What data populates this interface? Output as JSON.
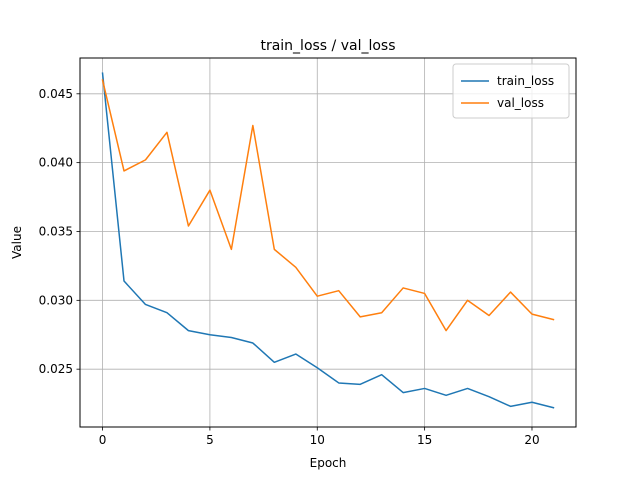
{
  "chart_data": {
    "type": "line",
    "title": "train_loss / val_loss",
    "xlabel": "Epoch",
    "ylabel": "Value",
    "xlim": [
      -1.05,
      22.05
    ],
    "ylim": [
      0.0208,
      0.0476
    ],
    "xticks": [
      0,
      5,
      10,
      15,
      20
    ],
    "xtick_labels": [
      "0",
      "5",
      "10",
      "15",
      "20"
    ],
    "yticks": [
      0.025,
      0.03,
      0.035,
      0.04,
      0.045
    ],
    "ytick_labels": [
      "0.025",
      "0.030",
      "0.035",
      "0.040",
      "0.045"
    ],
    "grid": true,
    "legend_position": "top-right",
    "x": [
      0,
      1,
      2,
      3,
      4,
      5,
      6,
      7,
      8,
      9,
      10,
      11,
      12,
      13,
      14,
      15,
      16,
      17,
      18,
      19,
      20,
      21
    ],
    "series": [
      {
        "name": "train_loss",
        "color": "#1f77b4",
        "values": [
          0.0465,
          0.0314,
          0.0297,
          0.0291,
          0.0278,
          0.0275,
          0.0273,
          0.0269,
          0.0255,
          0.0261,
          0.0251,
          0.024,
          0.0239,
          0.0246,
          0.0233,
          0.0236,
          0.0231,
          0.0236,
          0.023,
          0.0223,
          0.0226,
          0.0222
        ]
      },
      {
        "name": "val_loss",
        "color": "#ff7f0e",
        "values": [
          0.046,
          0.0394,
          0.0402,
          0.0422,
          0.0354,
          0.038,
          0.0337,
          0.0427,
          0.0337,
          0.0324,
          0.0303,
          0.0307,
          0.0288,
          0.0291,
          0.0309,
          0.0305,
          0.0278,
          0.03,
          0.0289,
          0.0306,
          0.029,
          0.0286
        ]
      }
    ]
  }
}
